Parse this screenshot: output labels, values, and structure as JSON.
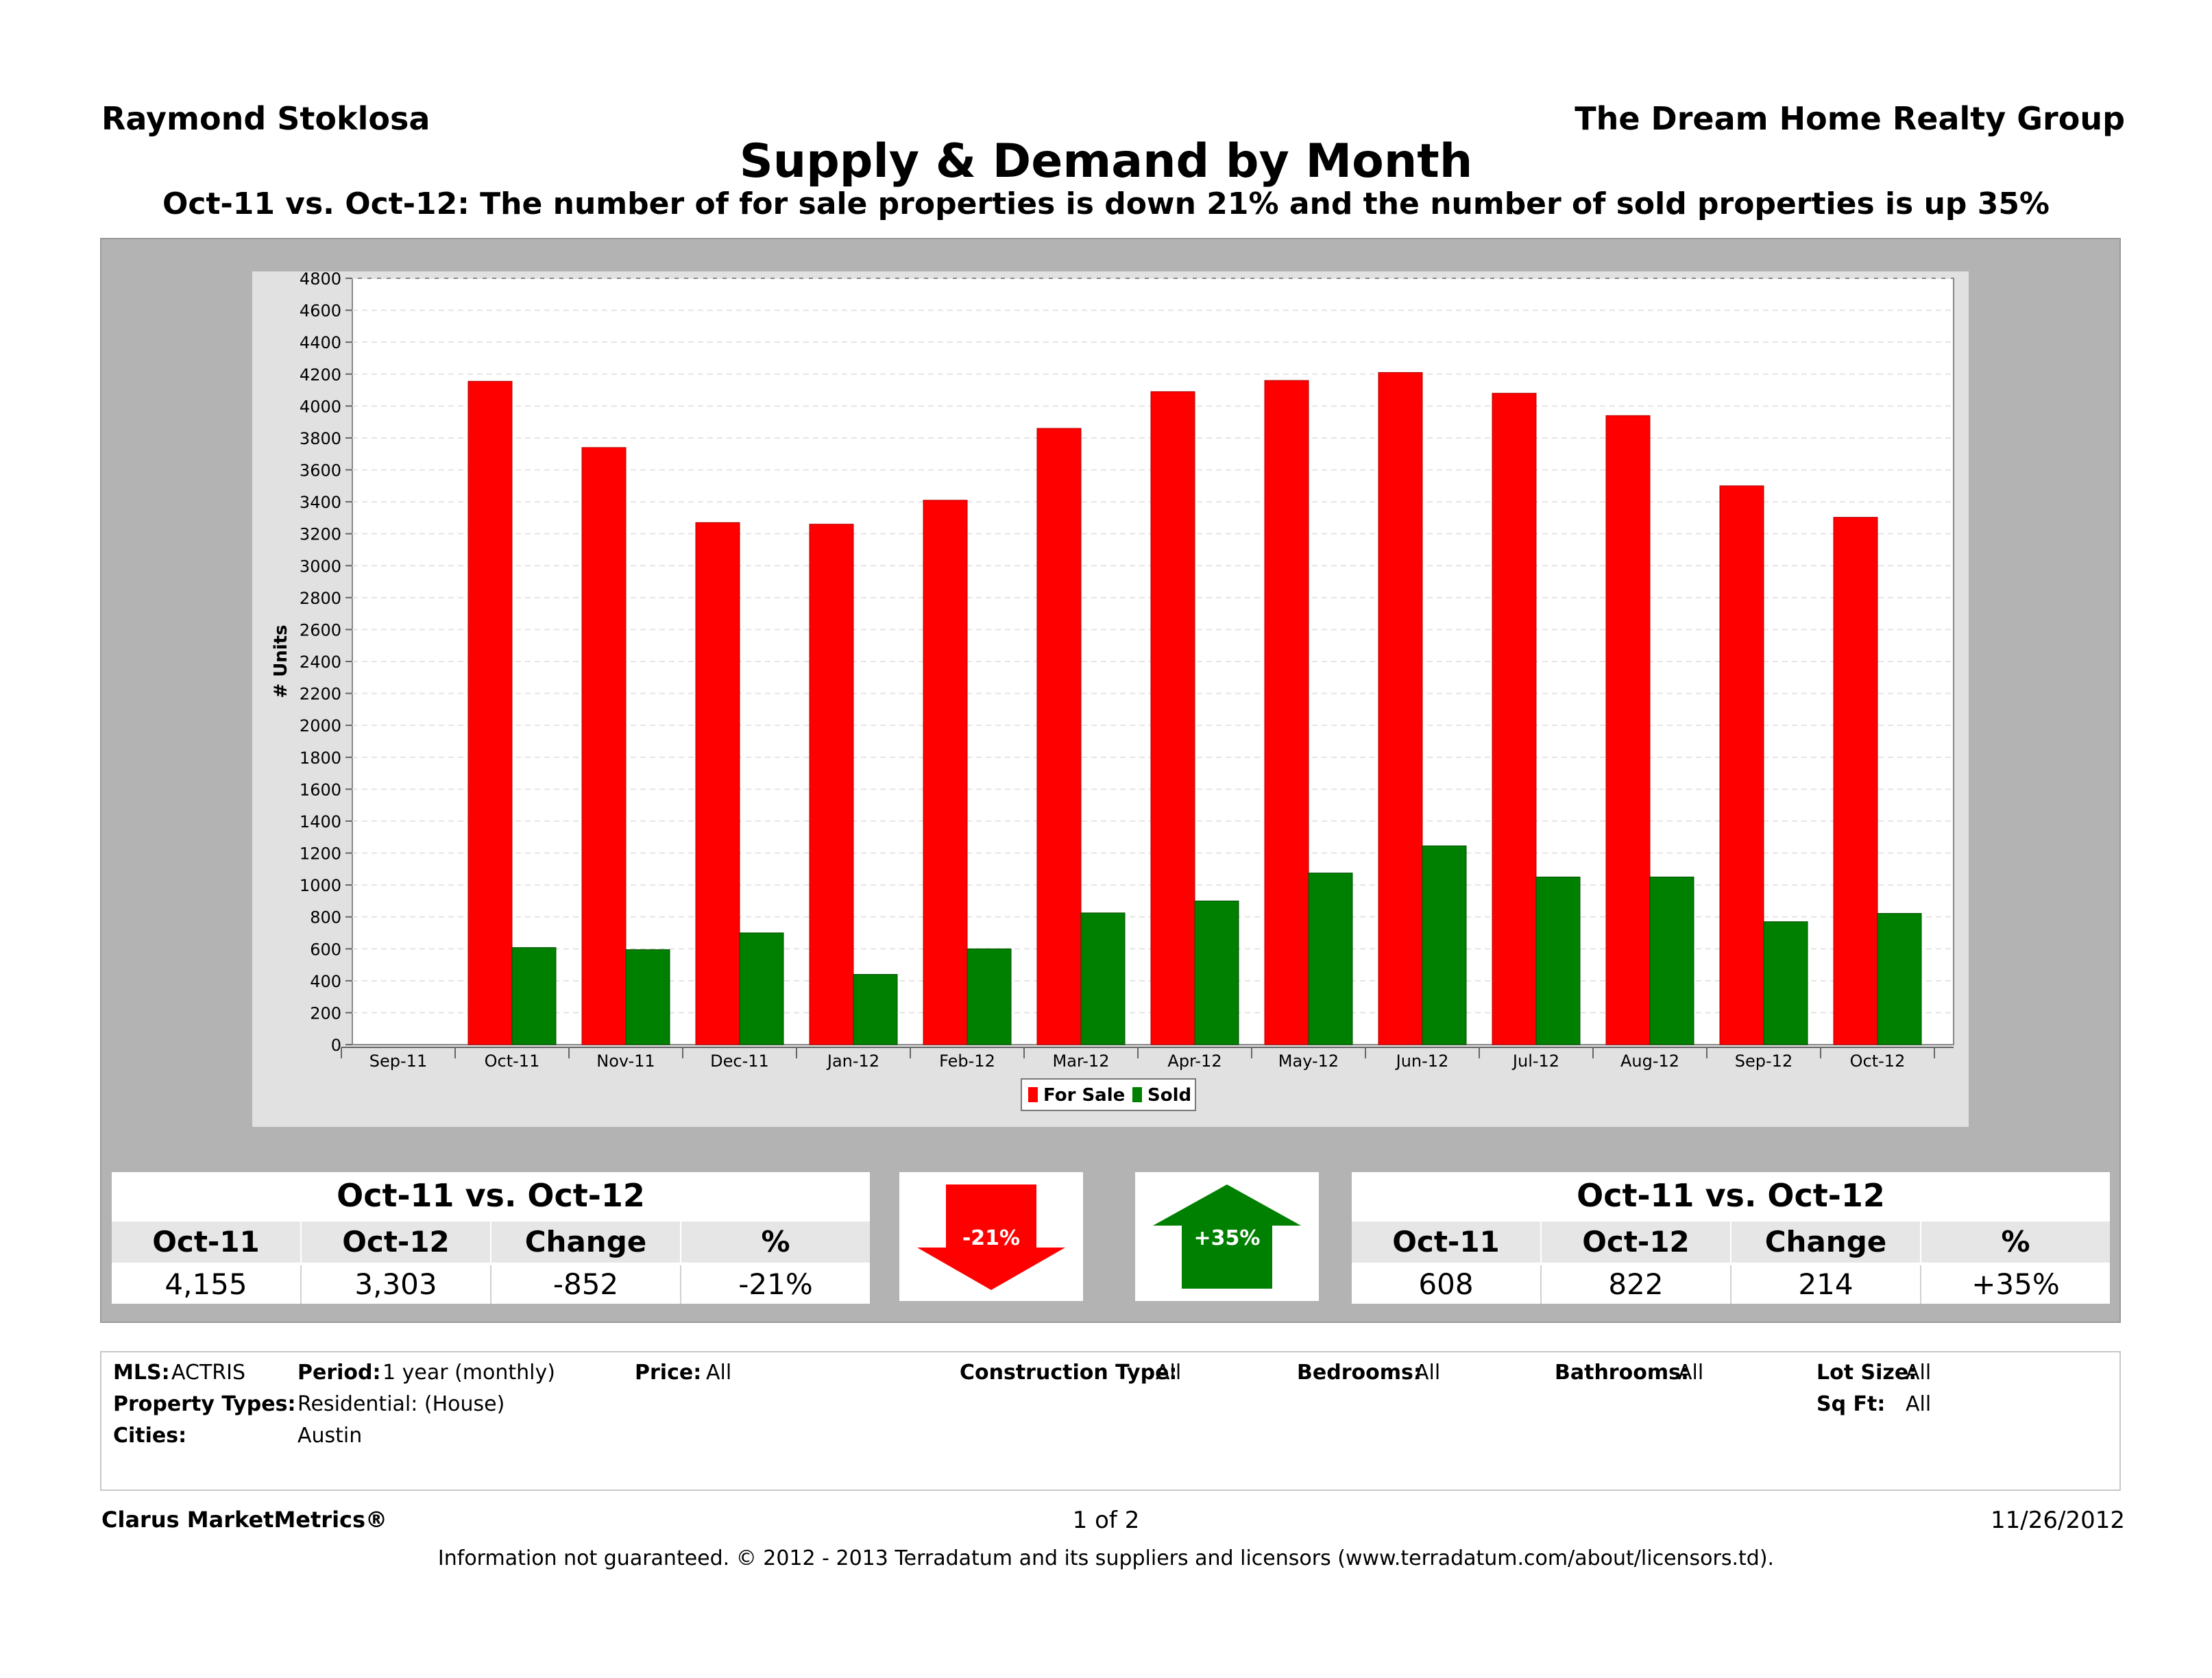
{
  "header": {
    "agent": "Raymond Stoklosa",
    "company": "The Dream Home Realty Group",
    "title": "Supply & Demand by Month",
    "subtitle": "Oct-11 vs. Oct-12:  The number of for sale properties is down 21% and the number of sold properties is up 35%"
  },
  "chart_data": {
    "type": "bar",
    "ylabel": "# Units",
    "xlabel": "",
    "ylim": [
      0,
      4800
    ],
    "ytick_step": 200,
    "grid": true,
    "legend_position": "bottom-center",
    "x_tick_labels": [
      "Sep-11",
      "Oct-11",
      "Nov-11",
      "Dec-11",
      "Jan-12",
      "Feb-12",
      "Mar-12",
      "Apr-12",
      "May-12",
      "Jun-12",
      "Jul-12",
      "Aug-12",
      "Sep-12",
      "Oct-12"
    ],
    "categories": [
      "Oct-11",
      "Nov-11",
      "Dec-11",
      "Jan-12",
      "Feb-12",
      "Mar-12",
      "Apr-12",
      "May-12",
      "Jun-12",
      "Jul-12",
      "Aug-12",
      "Sep-12",
      "Oct-12"
    ],
    "series": [
      {
        "name": "For Sale",
        "color": "#ff0000",
        "values": [
          4155,
          3740,
          3270,
          3260,
          3410,
          3860,
          4090,
          4160,
          4210,
          4080,
          3940,
          3500,
          3303
        ]
      },
      {
        "name": "Sold",
        "color": "#008000",
        "values": [
          608,
          595,
          700,
          440,
          600,
          825,
          900,
          1075,
          1245,
          1050,
          1050,
          770,
          822
        ]
      }
    ]
  },
  "summary_left": {
    "header": "Oct-11 vs. Oct-12",
    "columns": [
      "Oct-11",
      "Oct-12",
      "Change",
      "%"
    ],
    "values": [
      "4,155",
      "3,303",
      "-852",
      "-21%"
    ]
  },
  "arrow_down": {
    "label": "-21%",
    "color": "#ff0000"
  },
  "arrow_up": {
    "label": "+35%",
    "color": "#008000"
  },
  "summary_right": {
    "header": "Oct-11 vs. Oct-12",
    "columns": [
      "Oct-11",
      "Oct-12",
      "Change",
      "%"
    ],
    "values": [
      "608",
      "822",
      "214",
      "+35%"
    ]
  },
  "criteria": {
    "mls_label": "MLS:",
    "mls_value": "ACTRIS",
    "period_label": "Period:",
    "period_value": "1 year (monthly)",
    "price_label": "Price:",
    "price_value": "All",
    "construction_label": "Construction Type:",
    "construction_value": "All",
    "bedrooms_label": "Bedrooms:",
    "bedrooms_value": "All",
    "bathrooms_label": "Bathrooms:",
    "bathrooms_value": "All",
    "lotsize_label": "Lot Size:",
    "lotsize_value": "All",
    "proptypes_label": "Property Types:",
    "proptypes_value": "Residential: (House)",
    "sqft_label": "Sq Ft:",
    "sqft_value": "All",
    "cities_label": "Cities:",
    "cities_value": "Austin"
  },
  "footer": {
    "brand": "Clarus MarketMetrics®",
    "page": "1 of 2",
    "date": "11/26/2012",
    "disclaimer": "Information not guaranteed.  © 2012 - 2013 Terradatum and its suppliers and licensors (www.terradatum.com/about/licensors.td)."
  }
}
